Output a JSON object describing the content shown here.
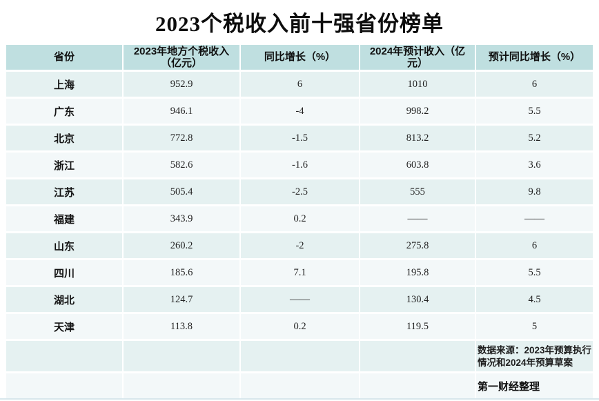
{
  "title": "2023个税收入前十强省份榜单",
  "table": {
    "headers": [
      "省份",
      "2023年地方个税收入（亿元）",
      "同比增长（%）",
      "2024年预计收入（亿元）",
      "预计同比增长（%）"
    ],
    "rows": [
      [
        "上海",
        "952.9",
        "6",
        "1010",
        "6"
      ],
      [
        "广东",
        "946.1",
        "-4",
        "998.2",
        "5.5"
      ],
      [
        "北京",
        "772.8",
        "-1.5",
        "813.2",
        "5.2"
      ],
      [
        "浙江",
        "582.6",
        "-1.6",
        "603.8",
        "3.6"
      ],
      [
        "江苏",
        "505.4",
        "-2.5",
        "555",
        "9.8"
      ],
      [
        "福建",
        "343.9",
        "0.2",
        "——",
        "——"
      ],
      [
        "山东",
        "260.2",
        "-2",
        "275.8",
        "6"
      ],
      [
        "四川",
        "185.6",
        "7.1",
        "195.8",
        "5.5"
      ],
      [
        "湖北",
        "124.7",
        "——",
        "130.4",
        "4.5"
      ],
      [
        "天津",
        "113.8",
        "0.2",
        "119.5",
        "5"
      ]
    ]
  },
  "footer": {
    "source_note": "数据来源：2023年预算执行情况和2024年预算草案",
    "credit": "第一财经整理"
  },
  "colors": {
    "header_bg": "#bfdfe0",
    "row_odd_bg": "#e5f1f1",
    "row_even_bg": "#f3f8f9",
    "title_color": "#0d0d0d",
    "text_color": "#1b1b1b"
  },
  "chart_data": {
    "type": "table",
    "title": "2023个税收入前十强省份榜单",
    "columns": [
      "省份",
      "2023年地方个税收入（亿元）",
      "同比增长（%）",
      "2024年预计收入（亿元）",
      "预计同比增长（%）"
    ],
    "rows": [
      {
        "province": "上海",
        "income_2023": 952.9,
        "yoy_growth_pct": 6,
        "expected_2024": 1010,
        "expected_growth_pct": 6
      },
      {
        "province": "广东",
        "income_2023": 946.1,
        "yoy_growth_pct": -4,
        "expected_2024": 998.2,
        "expected_growth_pct": 5.5
      },
      {
        "province": "北京",
        "income_2023": 772.8,
        "yoy_growth_pct": -1.5,
        "expected_2024": 813.2,
        "expected_growth_pct": 5.2
      },
      {
        "province": "浙江",
        "income_2023": 582.6,
        "yoy_growth_pct": -1.6,
        "expected_2024": 603.8,
        "expected_growth_pct": 3.6
      },
      {
        "province": "江苏",
        "income_2023": 505.4,
        "yoy_growth_pct": -2.5,
        "expected_2024": 555,
        "expected_growth_pct": 9.8
      },
      {
        "province": "福建",
        "income_2023": 343.9,
        "yoy_growth_pct": 0.2,
        "expected_2024": null,
        "expected_growth_pct": null
      },
      {
        "province": "山东",
        "income_2023": 260.2,
        "yoy_growth_pct": -2,
        "expected_2024": 275.8,
        "expected_growth_pct": 6
      },
      {
        "province": "四川",
        "income_2023": 185.6,
        "yoy_growth_pct": 7.1,
        "expected_2024": 195.8,
        "expected_growth_pct": 5.5
      },
      {
        "province": "湖北",
        "income_2023": 124.7,
        "yoy_growth_pct": null,
        "expected_2024": 130.4,
        "expected_growth_pct": 4.5
      },
      {
        "province": "天津",
        "income_2023": 113.8,
        "yoy_growth_pct": 0.2,
        "expected_2024": 119.5,
        "expected_growth_pct": 5
      }
    ],
    "missing_value_marker": "——",
    "source": "数据来源：2023年预算执行情况和2024年预算草案",
    "credit": "第一财经整理"
  }
}
